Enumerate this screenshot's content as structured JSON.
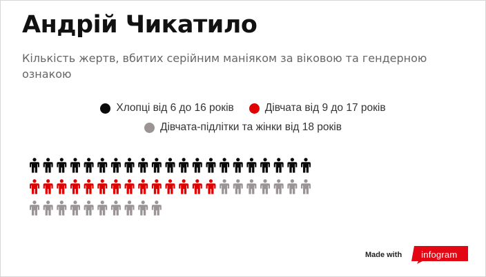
{
  "title": "Андрій Чикатило",
  "subtitle": "Кількість жертв, вбитих серійним маніяком за віковою та гендерною ознакою",
  "legend": [
    {
      "label": "Хлопці від 6 до 16 років",
      "color": "#0a0a0a"
    },
    {
      "label": "Дівчата від 9 до 17 років",
      "color": "#e00000"
    },
    {
      "label": "Дівчата-підлітки та жінки від 18 років",
      "color": "#9a9494"
    }
  ],
  "chart_data": {
    "type": "pictogram",
    "icon": "person-icon",
    "icons_per_row": 21,
    "categories": [
      "Хлопці від 6 до 16 років",
      "Дівчата від 9 до 17 років",
      "Дівчата-підлітки та жінки від 18 років"
    ],
    "values": [
      21,
      14,
      17
    ],
    "colors": [
      "#0a0a0a",
      "#e00000",
      "#9a9494"
    ],
    "legend_position": "top"
  },
  "branding": {
    "made_with": "Made with",
    "name": "infogram",
    "color": "#e30613"
  }
}
